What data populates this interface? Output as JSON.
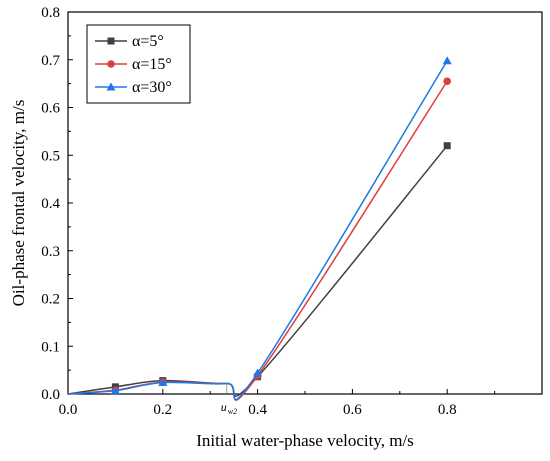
{
  "chart_data": {
    "type": "line",
    "xlabel": "Initial water-phase velocity, m/s",
    "ylabel": "Oil-phase frontal velocity, m/s",
    "xlim": [
      0.0,
      1.0
    ],
    "ylim": [
      0.0,
      0.8
    ],
    "xticks": [
      "0.0",
      "0.2",
      "0.4",
      "0.6",
      "0.8"
    ],
    "yticks": [
      "0.0",
      "0.1",
      "0.2",
      "0.3",
      "0.4",
      "0.5",
      "0.6",
      "0.7",
      "0.8"
    ],
    "legend_position": "top-left",
    "annotation": {
      "text": "u",
      "subscript": "w2",
      "x": 0.335
    },
    "series": [
      {
        "name": "α=5°",
        "color": "#404040",
        "marker": "square",
        "x": [
          0.1,
          0.2,
          0.4,
          0.8
        ],
        "y": [
          0.015,
          0.028,
          0.036,
          0.52
        ]
      },
      {
        "name": "α=15°",
        "color": "#e03c3c",
        "marker": "circle",
        "x": [
          0.1,
          0.2,
          0.4,
          0.8
        ],
        "y": [
          0.008,
          0.025,
          0.038,
          0.655
        ]
      },
      {
        "name": "α=30°",
        "color": "#1e78e6",
        "marker": "triangle",
        "x": [
          0.1,
          0.2,
          0.4,
          0.8
        ],
        "y": [
          0.007,
          0.024,
          0.044,
          0.698
        ]
      }
    ]
  }
}
